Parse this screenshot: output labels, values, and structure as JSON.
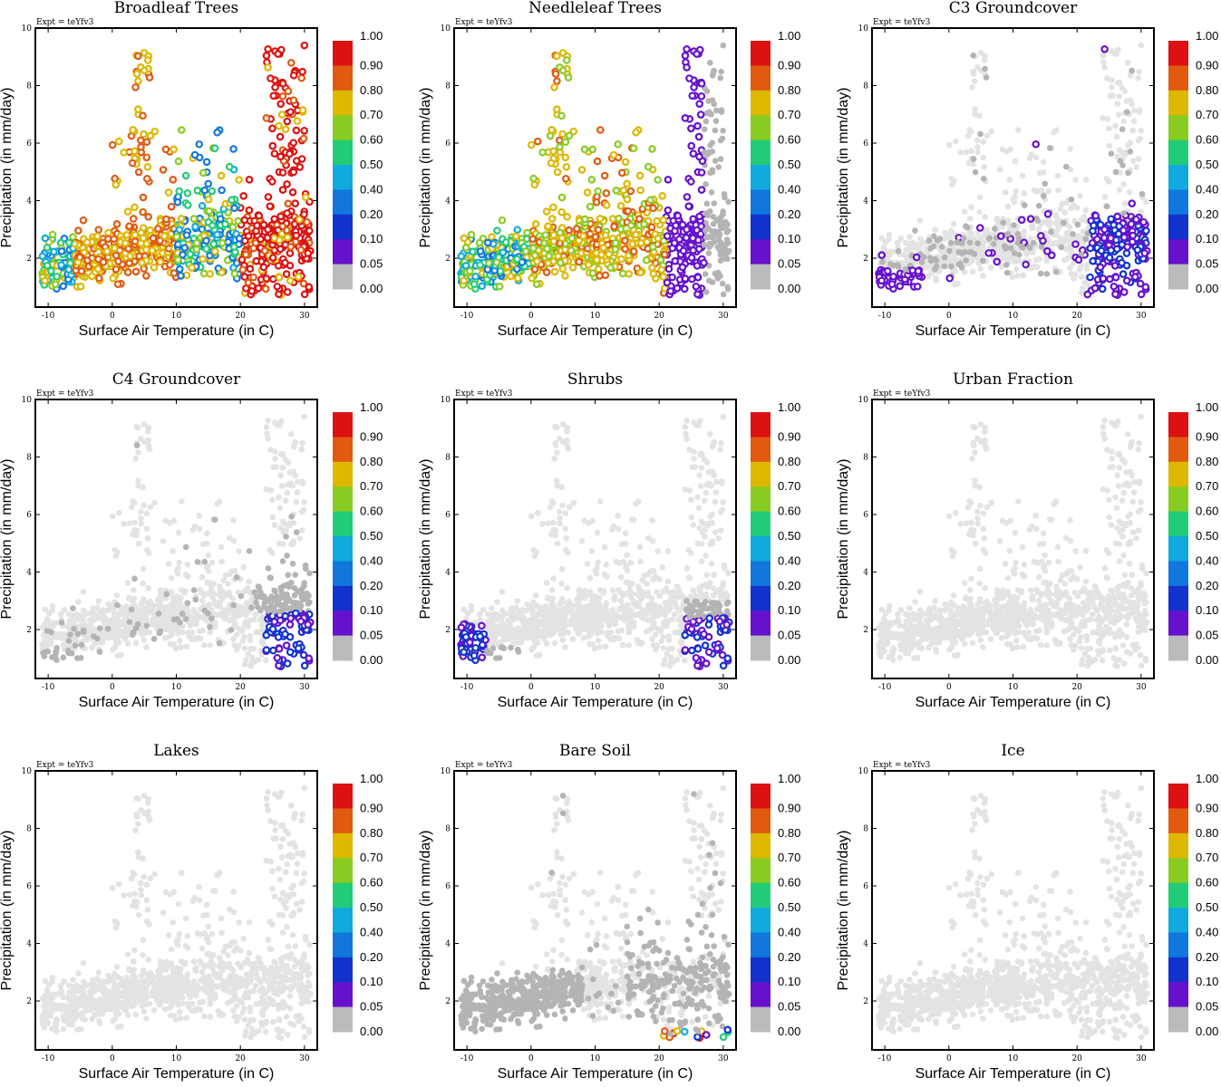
{
  "figure": {
    "expt_label": "Expt = teYfv3",
    "xlabel": "Surface Air Temperature (in C)",
    "ylabel": "Precipitation (in mm/day)",
    "xlim": [
      -12,
      32
    ],
    "ylim": [
      0.3,
      10
    ],
    "xticks": [
      -10,
      0,
      10,
      20,
      30
    ],
    "yticks": [
      2,
      4,
      6,
      8,
      10
    ],
    "xtick_labels": [
      "-10",
      "0",
      "10",
      "20",
      "30"
    ],
    "ytick_labels": [
      "2",
      "4",
      "6",
      "8",
      "10"
    ],
    "colorbar": {
      "labels": [
        "1.00",
        "0.90",
        "0.80",
        "0.70",
        "0.60",
        "0.50",
        "0.40",
        "0.20",
        "0.10",
        "0.05",
        "0.00"
      ],
      "colors": [
        "#dd1111",
        "#e05a10",
        "#ddb700",
        "#88cc22",
        "#22cc77",
        "#11aadd",
        "#1177dd",
        "#1133cc",
        "#6611cc",
        "#bbbbbb"
      ]
    },
    "colors": {
      "background_point": "#e3e3e3",
      "zero_point": "#b4b4b4"
    }
  },
  "chart_data": [
    {
      "type": "scatter",
      "title": "Broadleaf Trees",
      "xlabel": "Surface Air Temperature (in C)",
      "ylabel": "Precipitation (in mm/day)",
      "xlim": [
        -12,
        32
      ],
      "ylim": [
        0.3,
        10
      ],
      "pattern": "broadleaf",
      "description_values": {
        "high_fraction_region_x": [
          20,
          32
        ],
        "high_fraction_value": 0.95,
        "mid_region_x": [
          -10,
          5
        ],
        "mid_value": 0.8
      }
    },
    {
      "type": "scatter",
      "title": "Needleleaf Trees",
      "xlabel": "Surface Air Temperature (in C)",
      "ylabel": "Precipitation (in mm/day)",
      "xlim": [
        -12,
        32
      ],
      "ylim": [
        0.3,
        10
      ],
      "pattern": "needleleaf",
      "description_values": {
        "high_fraction_region_x": [
          0,
          20
        ],
        "high_fraction_value": 0.75,
        "warm_region_x": [
          20,
          30
        ],
        "warm_value": 0.05
      }
    },
    {
      "type": "scatter",
      "title": "C3 Groundcover",
      "xlabel": "Surface Air Temperature (in C)",
      "ylabel": "Precipitation (in mm/day)",
      "xlim": [
        -12,
        32
      ],
      "ylim": [
        0.3,
        10
      ],
      "pattern": "c3",
      "description_values": {
        "max_fraction": 0.1
      }
    },
    {
      "type": "scatter",
      "title": "C4 Groundcover",
      "xlabel": "Surface Air Temperature (in C)",
      "ylabel": "Precipitation (in mm/day)",
      "xlim": [
        -12,
        32
      ],
      "ylim": [
        0.3,
        10
      ],
      "pattern": "c4",
      "description_values": {
        "max_fraction": 0.2
      }
    },
    {
      "type": "scatter",
      "title": "Shrubs",
      "xlabel": "Surface Air Temperature (in C)",
      "ylabel": "Precipitation (in mm/day)",
      "xlim": [
        -12,
        32
      ],
      "ylim": [
        0.3,
        10
      ],
      "pattern": "shrubs",
      "description_values": {
        "max_fraction": 0.2
      }
    },
    {
      "type": "scatter",
      "title": "Urban Fraction",
      "xlabel": "Surface Air Temperature (in C)",
      "ylabel": "Precipitation (in mm/day)",
      "xlim": [
        -12,
        32
      ],
      "ylim": [
        0.3,
        10
      ],
      "pattern": "empty",
      "description_values": {
        "max_fraction": 0.0
      }
    },
    {
      "type": "scatter",
      "title": "Lakes",
      "xlabel": "Surface Air Temperature (in C)",
      "ylabel": "Precipitation (in mm/day)",
      "xlim": [
        -12,
        32
      ],
      "ylim": [
        0.3,
        10
      ],
      "pattern": "empty",
      "description_values": {
        "max_fraction": 0.0
      }
    },
    {
      "type": "scatter",
      "title": "Bare Soil",
      "xlabel": "Surface Air Temperature (in C)",
      "ylabel": "Precipitation (in mm/day)",
      "xlim": [
        -12,
        32
      ],
      "ylim": [
        0.3,
        10
      ],
      "pattern": "baresoil",
      "description_values": {
        "max_fraction": 1.0,
        "high_fraction_region_x": [
          20,
          33
        ]
      }
    },
    {
      "type": "scatter",
      "title": "Ice",
      "xlabel": "Surface Air Temperature (in C)",
      "ylabel": "Precipitation (in mm/day)",
      "xlim": [
        -12,
        32
      ],
      "ylim": [
        0.3,
        10
      ],
      "pattern": "empty",
      "description_values": {
        "max_fraction": 0.0
      }
    }
  ]
}
